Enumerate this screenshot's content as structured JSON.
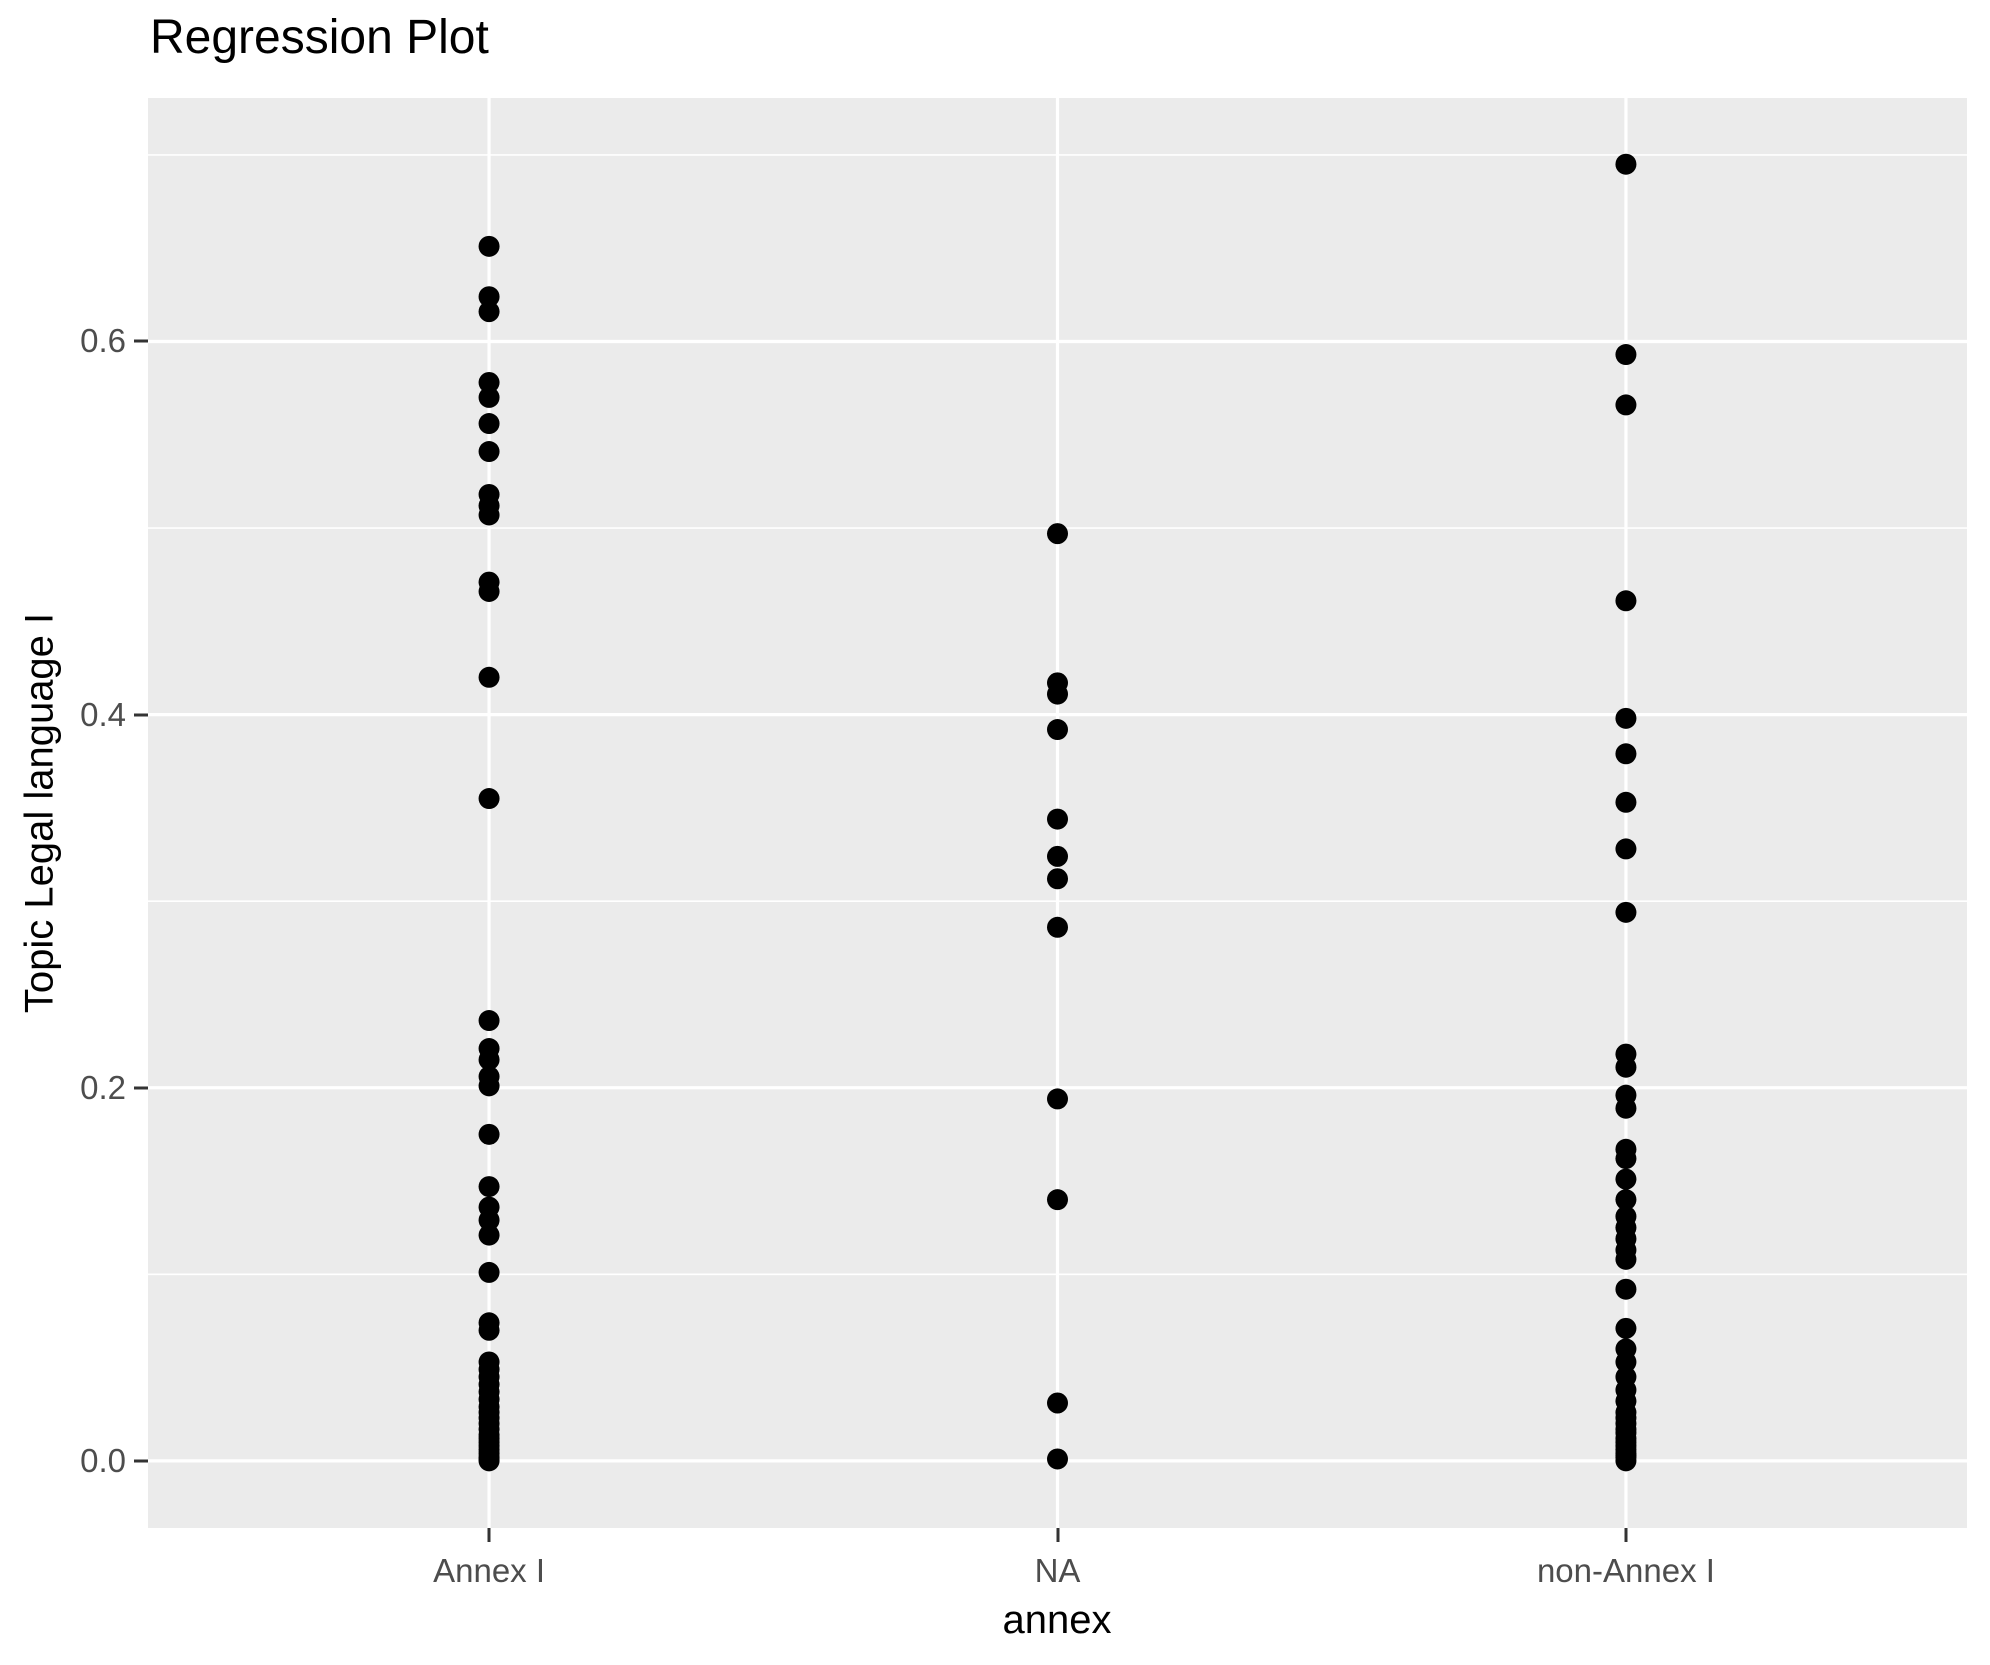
{
  "title": "Regression Plot",
  "chart_data": {
    "type": "scatter",
    "subtype": "categorical-strip-plot",
    "title": "Regression Plot",
    "xlabel": "annex",
    "ylabel": "Topic Legal language I",
    "categories": [
      "Annex I",
      "NA",
      "non-Annex I"
    ],
    "ytick_labels": [
      "0.0",
      "0.2",
      "0.4",
      "0.6"
    ],
    "yticks": [
      0.0,
      0.2,
      0.4,
      0.6
    ],
    "yticks_minor": [
      0.1,
      0.3,
      0.5,
      0.7
    ],
    "ylim": [
      -0.036,
      0.7305
    ],
    "grid": "white major and minor horizontal lines, white vertical line at each category, on grey panel",
    "legend": "none",
    "colors": {
      "point": "#000000",
      "panel_bg": "#EBEBEB",
      "grid_major": "#FFFFFF",
      "grid_minor": "#FFFFFF",
      "tick_text": "#4D4D4D",
      "axis_text": "#000000",
      "tick_mark": "#333333"
    },
    "series": [
      {
        "name": "Annex I",
        "values": [
          0.651,
          0.624,
          0.616,
          0.578,
          0.57,
          0.556,
          0.541,
          0.518,
          0.512,
          0.507,
          0.471,
          0.466,
          0.42,
          0.355,
          0.236,
          0.221,
          0.215,
          0.206,
          0.201,
          0.175,
          0.147,
          0.136,
          0.129,
          0.121,
          0.101,
          0.074,
          0.07,
          0.053,
          0.049,
          0.045,
          0.041,
          0.037,
          0.033,
          0.029,
          0.026,
          0.023,
          0.02,
          0.017,
          0.014,
          0.012,
          0.01,
          0.008,
          0.006,
          0.004,
          0.002,
          0.001,
          0.0
        ]
      },
      {
        "name": "NA",
        "values": [
          0.497,
          0.417,
          0.411,
          0.392,
          0.344,
          0.324,
          0.312,
          0.286,
          0.194,
          0.14,
          0.031,
          0.001
        ]
      },
      {
        "name": "non-Annex I",
        "values": [
          0.695,
          0.593,
          0.566,
          0.461,
          0.398,
          0.379,
          0.353,
          0.328,
          0.294,
          0.218,
          0.211,
          0.196,
          0.189,
          0.167,
          0.162,
          0.151,
          0.14,
          0.131,
          0.125,
          0.119,
          0.113,
          0.108,
          0.092,
          0.071,
          0.06,
          0.053,
          0.045,
          0.038,
          0.032,
          0.026,
          0.023,
          0.02,
          0.017,
          0.015,
          0.012,
          0.01,
          0.008,
          0.006,
          0.004,
          0.003,
          0.002,
          0.0
        ]
      }
    ],
    "point_radius_px": 10.5
  }
}
